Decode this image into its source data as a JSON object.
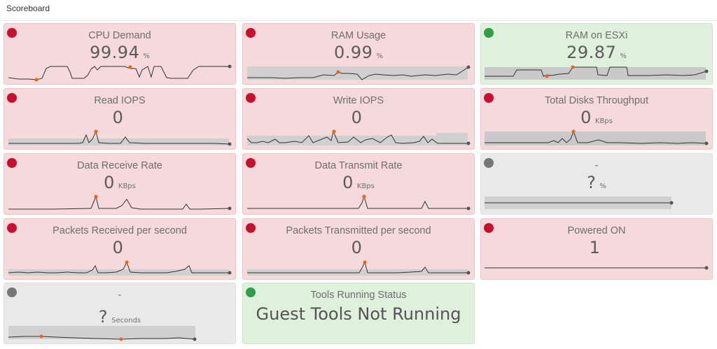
{
  "header": {
    "title": "Scoreboard"
  },
  "status_colors": {
    "red": "#c90f2e",
    "green": "#2f9e44",
    "grey": "#777777"
  },
  "tiles": [
    {
      "name": "cpu-demand",
      "title": "CPU Demand",
      "value": "99.94",
      "unit": "%",
      "status": "red"
    },
    {
      "name": "ram-usage",
      "title": "RAM Usage",
      "value": "0.99",
      "unit": "%",
      "status": "red"
    },
    {
      "name": "ram-on-esxi",
      "title": "RAM on ESXi",
      "value": "29.87",
      "unit": "%",
      "status": "green"
    },
    {
      "name": "read-iops",
      "title": "Read IOPS",
      "value": "0",
      "unit": "",
      "status": "red"
    },
    {
      "name": "write-iops",
      "title": "Write IOPS",
      "value": "0",
      "unit": "",
      "status": "red"
    },
    {
      "name": "total-disks-throughput",
      "title": "Total Disks Throughput",
      "value": "0",
      "unit": "KBps",
      "status": "red"
    },
    {
      "name": "data-receive-rate",
      "title": "Data Receive Rate",
      "value": "0",
      "unit": "KBps",
      "status": "red"
    },
    {
      "name": "data-transmit-rate",
      "title": "Data Transmit Rate",
      "value": "0",
      "unit": "KBps",
      "status": "red"
    },
    {
      "name": "unnamed-percent",
      "title": "-",
      "value": "?",
      "unit": "%",
      "status": "grey"
    },
    {
      "name": "packets-received",
      "title": "Packets Received per second",
      "value": "0",
      "unit": "",
      "status": "red"
    },
    {
      "name": "packets-transmitted",
      "title": "Packets Transmitted per second",
      "value": "0",
      "unit": "",
      "status": "red"
    },
    {
      "name": "powered-on",
      "title": "Powered ON",
      "value": "1",
      "unit": "",
      "status": "red"
    },
    {
      "name": "unnamed-seconds",
      "title": "-",
      "value": "?",
      "unit": "Seconds",
      "status": "grey"
    },
    {
      "name": "tools-running-status",
      "title": "Tools Running Status",
      "value": "Guest Tools Not Running",
      "unit": "",
      "status": "green"
    }
  ]
}
